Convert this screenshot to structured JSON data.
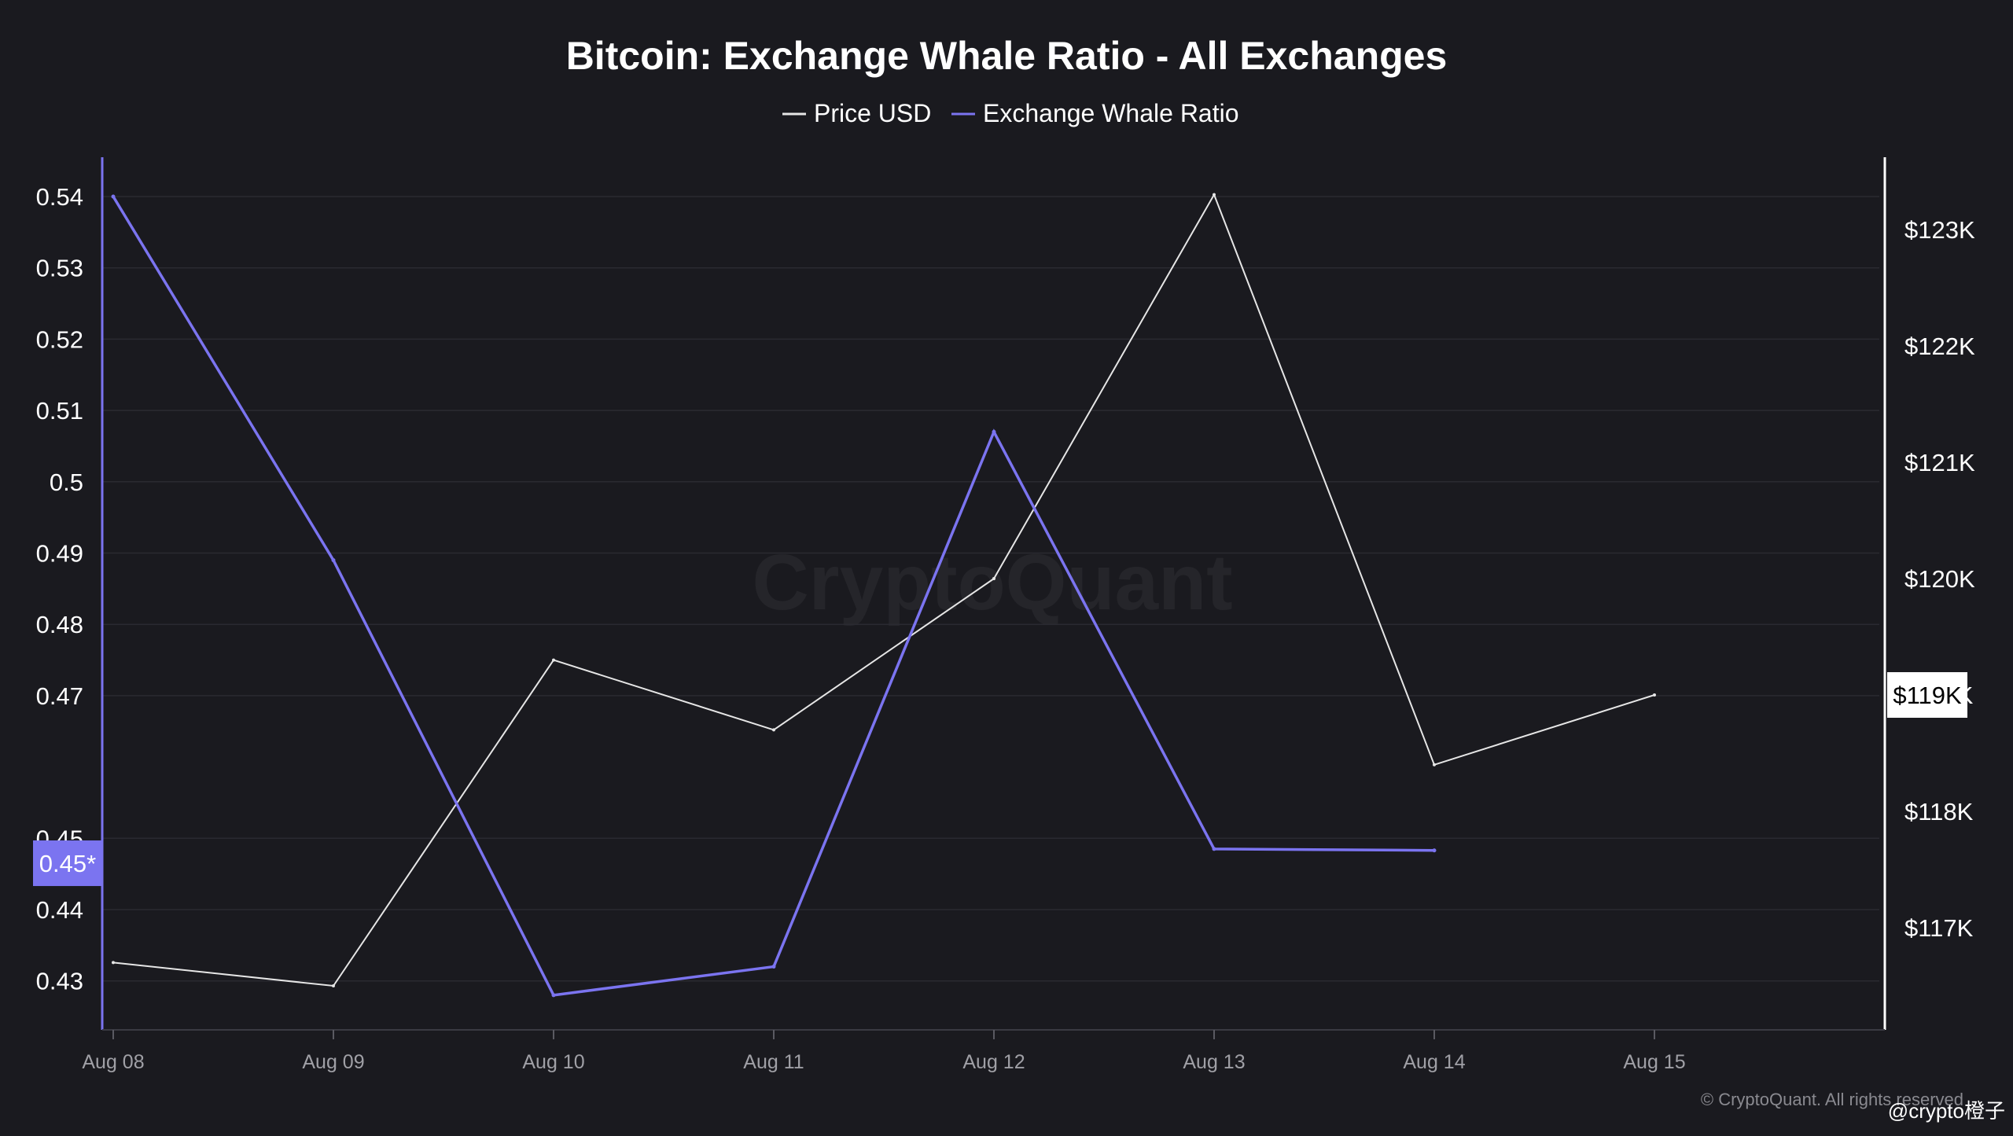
{
  "chart_data": {
    "type": "line",
    "title": "Bitcoin: Exchange Whale Ratio - All Exchanges",
    "categories": [
      "Aug 08",
      "Aug 09",
      "Aug 10",
      "Aug 11",
      "Aug 12",
      "Aug 13",
      "Aug 14",
      "Aug 15"
    ],
    "series": [
      {
        "name": "Price USD",
        "axis": "right",
        "color": "#e6e6e6",
        "values": [
          116.7,
          116.5,
          119.3,
          118.7,
          120.0,
          123.3,
          118.4,
          119.0
        ]
      },
      {
        "name": "Exchange Whale Ratio",
        "axis": "left",
        "color": "#7b74f0",
        "values": [
          0.54,
          0.489,
          0.428,
          0.432,
          0.507,
          0.4485,
          0.4483,
          null
        ]
      }
    ],
    "left_axis": {
      "ticks": [
        "0.43",
        "0.44",
        "0.45",
        "0.47",
        "0.48",
        "0.49",
        "0.5",
        "0.51",
        "0.52",
        "0.53",
        "0.54"
      ],
      "tick_values": [
        0.43,
        0.44,
        0.45,
        0.47,
        0.48,
        0.49,
        0.5,
        0.51,
        0.52,
        0.53,
        0.54
      ],
      "current_marker": "0.45*",
      "current_value": 0.4465
    },
    "right_axis": {
      "ticks": [
        "$117K",
        "$118K",
        "$119K",
        "$120K",
        "$121K",
        "$122K",
        "$123K"
      ],
      "tick_values": [
        117,
        118,
        119,
        120,
        121,
        122,
        123
      ],
      "current_marker": "$119K",
      "current_value": 119.0
    },
    "watermark": "CryptoQuant",
    "footer": "© CryptoQuant. All rights reserved",
    "signature": "@crypto橙子",
    "grid": true,
    "legend_position": "top-center"
  }
}
